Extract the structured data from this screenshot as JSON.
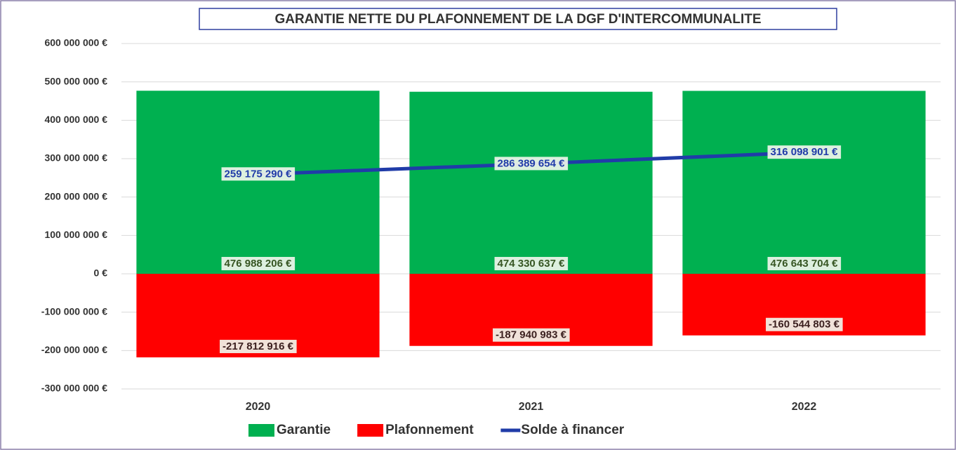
{
  "chart_data": {
    "type": "bar",
    "title": "GARANTIE NETTE DU PLAFONNEMENT DE LA DGF D'INTERCOMMUNALITE",
    "categories": [
      "2020",
      "2021",
      "2022"
    ],
    "series": [
      {
        "name": "Garantie",
        "type": "bar",
        "color": "#00b050",
        "label_color": "#375623",
        "values": [
          476988206,
          474330637,
          476643704
        ],
        "value_labels": [
          "476 988 206 €",
          "474 330 637 €",
          "476 643 704 €"
        ]
      },
      {
        "name": "Plafonnement",
        "type": "bar",
        "color": "#ff0000",
        "label_color": "#3b1f1f",
        "values": [
          -217812916,
          -187940983,
          -160544803
        ],
        "value_labels": [
          "-217 812 916 €",
          "-187 940 983 €",
          "-160 544 803 €"
        ]
      },
      {
        "name": "Solde à financer",
        "type": "line",
        "color": "#203ca8",
        "label_color": "#203ca8",
        "values": [
          259175290,
          286389654,
          316098901
        ],
        "value_labels": [
          "259 175 290 €",
          "286 389 654 €",
          "316 098 901 €"
        ]
      }
    ],
    "ylim": [
      -300000000,
      600000000
    ],
    "yticks": [
      {
        "value": -300000000,
        "label": "-300 000 000 €"
      },
      {
        "value": -200000000,
        "label": "-200 000 000 €"
      },
      {
        "value": -100000000,
        "label": "-100 000 000 €"
      },
      {
        "value": 0,
        "label": "0 €"
      },
      {
        "value": 100000000,
        "label": "100 000 000 €"
      },
      {
        "value": 200000000,
        "label": "200 000 000 €"
      },
      {
        "value": 300000000,
        "label": "300 000 000 €"
      },
      {
        "value": 400000000,
        "label": "400 000 000 €"
      },
      {
        "value": 500000000,
        "label": "500 000 000 €"
      },
      {
        "value": 600000000,
        "label": "600 000 000 €"
      }
    ],
    "grid": true,
    "legend": "bottom"
  }
}
